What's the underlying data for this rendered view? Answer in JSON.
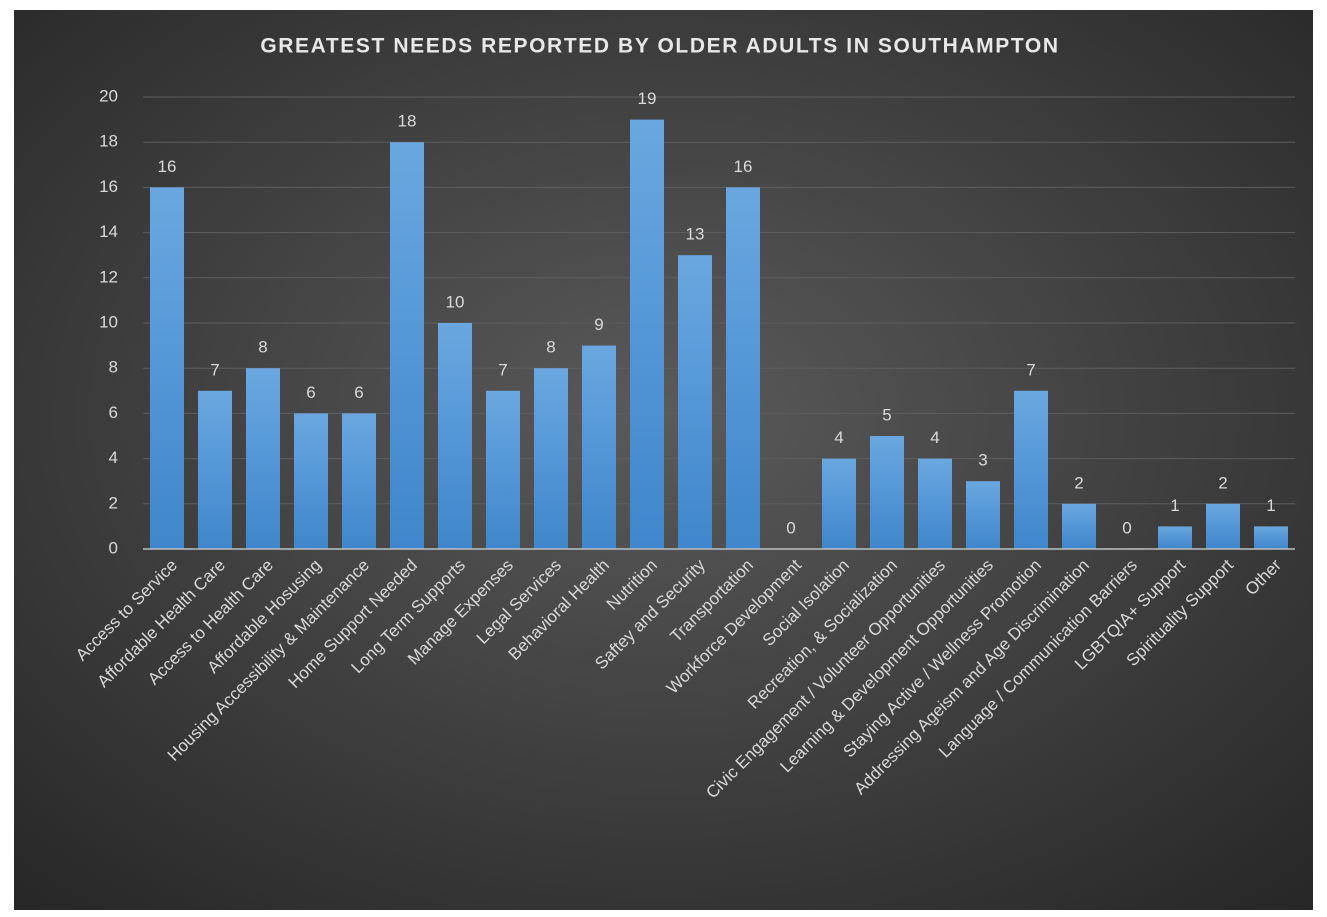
{
  "chart_data": {
    "type": "bar",
    "title": "GREATEST NEEDS REPORTED BY OLDER ADULTS IN SOUTHAMPTON",
    "categories": [
      "Access to Service",
      "Affordable Health Care",
      "Access to Health Care",
      "Affordable Hosusing",
      "Housing Accessibility & Maintenance",
      "Home Support Needed",
      "Long Term Supports",
      "Manage Expenses",
      "Legal Services",
      "Behavioral Health",
      "Nutrition",
      "Saftey and Security",
      "Transportation",
      "Workforce Development",
      "Social Isolation",
      "Recreation, & Socialization",
      "Civic Engagement / Volunteer Opportunities",
      "Learning & Development Opportunities",
      "Staying Active / Wellness Promotion",
      "Addressing Ageism and Age Discrimination",
      "Language / Communication Barriers",
      "LGBTQIA+ Support",
      "Spirituality Support",
      "Other"
    ],
    "values": [
      16,
      7,
      8,
      6,
      6,
      18,
      10,
      7,
      8,
      9,
      19,
      13,
      16,
      0,
      4,
      5,
      4,
      3,
      7,
      2,
      0,
      1,
      2,
      1
    ],
    "color": "#5b9bd5",
    "ylim": [
      0,
      20
    ],
    "yticks": [
      0,
      2,
      4,
      6,
      8,
      10,
      12,
      14,
      16,
      18,
      20
    ],
    "grid": true
  }
}
